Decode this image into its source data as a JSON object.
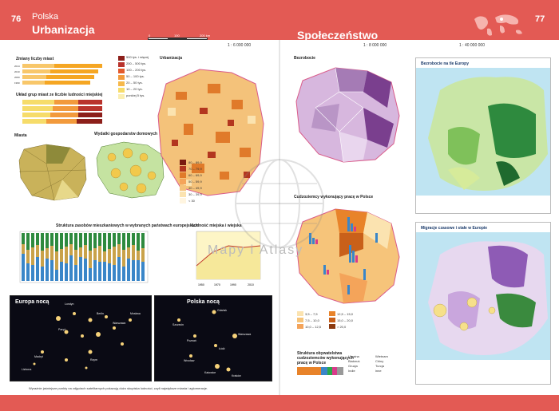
{
  "header": {
    "left_page_number": "76",
    "left_section": "Polska",
    "left_title": "Urbanizacja",
    "right_title": "Społeczeństwo",
    "right_page_number": "77"
  },
  "scales": {
    "s1": "1 : 6 000 000",
    "s2": "1 : 8 000 000",
    "s3": "1 : 40 000 000",
    "bar_0": "0",
    "bar_100": "100",
    "bar_200": "200 km"
  },
  "panels": {
    "cities_count": "Zmiany liczby miast",
    "city_groups": "Układ grup miast ze liczbie ludności miejskiej",
    "cities": "Miasta",
    "economic": "Wydatki gospodarstw domowych",
    "urbanization": "Urbanizacja",
    "urban_structure": "Struktura zasobów mieszkaniowych w wybranych państwach europejskich",
    "urban_pop": "Ludność miejska i wiejska",
    "europe_night": "Europa nocą",
    "poland_night": "Polska nocą",
    "unemployment": "Bezrobocie",
    "foreigners": "Cudzoziemcy wykonujący pracę w Polsce",
    "foreigners_structure": "Struktura obywatelstwa cudzoziemców wykonujących pracę w Polsce",
    "unemployment_europe": "Bezrobocie na tle Europy",
    "migration_europe": "Migracje czasowe i stałe w Europie"
  },
  "legend": {
    "cities_groups": [
      "500 tys. i więcej",
      "200 – 500 tys.",
      "100 – 200 tys.",
      "50 – 100 tys.",
      "20 – 50 tys.",
      "10 – 20 tys.",
      "poniżej 5 tys."
    ],
    "urban_pct": [
      "80 – 89,9",
      "70 – 79,9",
      "60 – 69,9",
      "50 – 59,9",
      "40 – 49,9",
      "30 – 39,9",
      "< 30"
    ],
    "foreigners_legend": [
      "3,5 – 7,5",
      "7,5 – 10,0",
      "10,0 – 12,5",
      "12,5 – 15,0",
      "15,0 – 20,0",
      "> 20,0"
    ],
    "structure_legend": [
      "Ukraina",
      "Białoruś",
      "Gruzja",
      "Indie",
      "Wietnam",
      "Chiny",
      "Turcja",
      "inne"
    ],
    "axis_years": [
      "1950",
      "1970",
      "1990",
      "2010"
    ]
  },
  "night": {
    "europe_cities": [
      "Londyn",
      "Paryż",
      "Madryt",
      "Lizbona",
      "Rzym",
      "Berlin",
      "Warszawa",
      "Moskwa"
    ],
    "poland_cities": [
      "Gdańsk",
      "Szczecin",
      "Poznań",
      "Warszawa",
      "Łódź",
      "Wrocław",
      "Katowice",
      "Kraków"
    ]
  },
  "caption": "Wyraźnie jaśniejsze punkty na zdjęciach satelitarnych pokazują dużo skupiska ludności, czyli największe miasta i aglomeracje.",
  "watermark": "Mapy i Atlasy",
  "colors": {
    "accent": "#e35a54"
  }
}
